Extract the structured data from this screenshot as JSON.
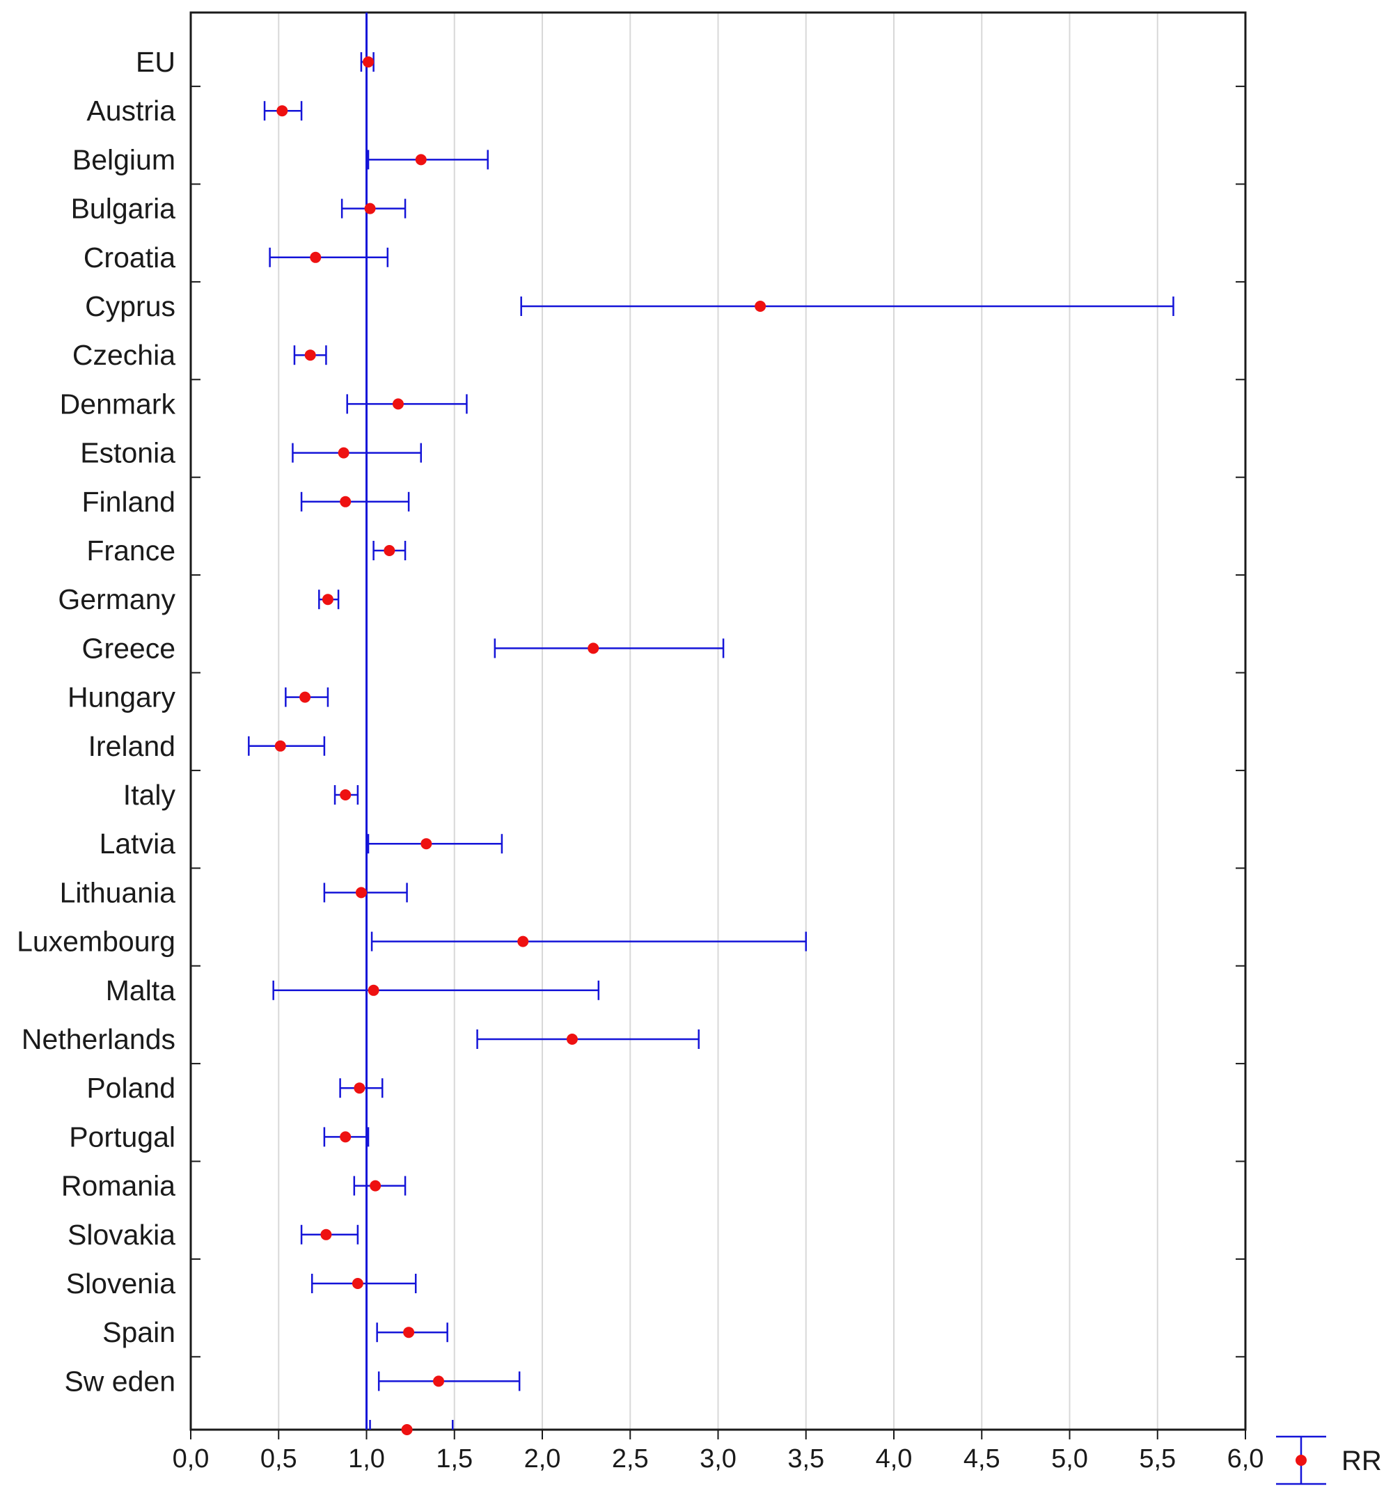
{
  "chart_data": {
    "type": "forest",
    "title": "",
    "xlabel": "",
    "ylabel": "",
    "xlim": [
      0,
      6
    ],
    "x_ticks": [
      0,
      0.5,
      1,
      1.5,
      2,
      2.5,
      3,
      3.5,
      4,
      4.5,
      5,
      5.5,
      6
    ],
    "x_tick_labels": [
      "0,0",
      "0,5",
      "1,0",
      "1,5",
      "2,0",
      "2,5",
      "3,0",
      "3,5",
      "4,0",
      "4,5",
      "5,0",
      "5,5",
      "6,0"
    ],
    "reference_line": 1,
    "grid": "vertical",
    "legend": {
      "position": "bottom-right",
      "entries": [
        {
          "name": "RR",
          "marker": "point-with-error-bar"
        }
      ]
    },
    "colors": {
      "point": "#ee1111",
      "interval": "#1414d8",
      "grid": "#d8d8d8",
      "axis": "#1a1a1a"
    },
    "categories": [
      "EU",
      "Austria",
      "Belgium",
      "Bulgaria",
      "Croatia",
      "Cyprus",
      "Czechia",
      "Denmark",
      "Estonia",
      "Finland",
      "France",
      "Germany",
      "Greece",
      "Hungary",
      "Ireland",
      "Italy",
      "Latvia",
      "Lithuania",
      "Luxembourg",
      "Malta",
      "Netherlands",
      "Poland",
      "Portugal",
      "Romania",
      "Slovakia",
      "Slovenia",
      "Spain",
      "Sw eden"
    ],
    "series": [
      {
        "name": "RR",
        "points": [
          {
            "category": "EU",
            "rr": 1.01,
            "lower": 0.97,
            "upper": 1.04
          },
          {
            "category": "Austria",
            "rr": 0.52,
            "lower": 0.42,
            "upper": 0.63
          },
          {
            "category": "Belgium",
            "rr": 1.31,
            "lower": 1.01,
            "upper": 1.69
          },
          {
            "category": "Bulgaria",
            "rr": 1.02,
            "lower": 0.86,
            "upper": 1.22
          },
          {
            "category": "Croatia",
            "rr": 0.71,
            "lower": 0.45,
            "upper": 1.12
          },
          {
            "category": "Cyprus",
            "rr": 3.24,
            "lower": 1.88,
            "upper": 5.59
          },
          {
            "category": "Czechia",
            "rr": 0.68,
            "lower": 0.59,
            "upper": 0.77
          },
          {
            "category": "Denmark",
            "rr": 1.18,
            "lower": 0.89,
            "upper": 1.57
          },
          {
            "category": "Estonia",
            "rr": 0.87,
            "lower": 0.58,
            "upper": 1.31
          },
          {
            "category": "Finland",
            "rr": 0.88,
            "lower": 0.63,
            "upper": 1.24
          },
          {
            "category": "France",
            "rr": 1.13,
            "lower": 1.04,
            "upper": 1.22
          },
          {
            "category": "Germany",
            "rr": 0.78,
            "lower": 0.73,
            "upper": 0.84
          },
          {
            "category": "Greece",
            "rr": 2.29,
            "lower": 1.73,
            "upper": 3.03
          },
          {
            "category": "Hungary",
            "rr": 0.65,
            "lower": 0.54,
            "upper": 0.78
          },
          {
            "category": "Ireland",
            "rr": 0.51,
            "lower": 0.33,
            "upper": 0.76
          },
          {
            "category": "Italy",
            "rr": 0.88,
            "lower": 0.82,
            "upper": 0.95
          },
          {
            "category": "Latvia",
            "rr": 1.34,
            "lower": 1.01,
            "upper": 1.77
          },
          {
            "category": "Lithuania",
            "rr": 0.97,
            "lower": 0.76,
            "upper": 1.23
          },
          {
            "category": "Luxembourg",
            "rr": 1.89,
            "lower": 1.03,
            "upper": 3.5
          },
          {
            "category": "Malta",
            "rr": 1.04,
            "lower": 0.47,
            "upper": 2.32
          },
          {
            "category": "Netherlands",
            "rr": 2.17,
            "lower": 1.63,
            "upper": 2.89
          },
          {
            "category": "Poland",
            "rr": 0.96,
            "lower": 0.85,
            "upper": 1.09
          },
          {
            "category": "Portugal",
            "rr": 0.88,
            "lower": 0.76,
            "upper": 1.01
          },
          {
            "category": "Romania",
            "rr": 1.05,
            "lower": 0.93,
            "upper": 1.22
          },
          {
            "category": "Slovakia",
            "rr": 0.77,
            "lower": 0.63,
            "upper": 0.95
          },
          {
            "category": "Slovenia",
            "rr": 0.95,
            "lower": 0.69,
            "upper": 1.28
          },
          {
            "category": "Spain",
            "rr": 1.24,
            "lower": 1.06,
            "upper": 1.46
          },
          {
            "category": "Sw eden",
            "rr": 1.41,
            "lower": 1.07,
            "upper": 1.87
          }
        ]
      }
    ],
    "partial_row_at_axis": {
      "rr": 1.23,
      "lower": 1.02,
      "upper": 1.49
    }
  }
}
